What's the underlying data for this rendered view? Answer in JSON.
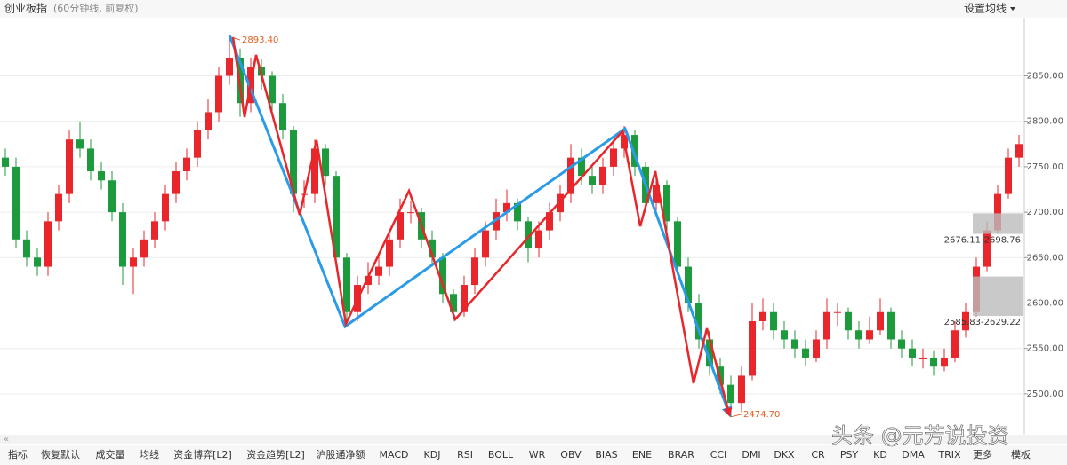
{
  "chart_data": {
    "type": "candlestick",
    "title": "创业板指",
    "subtitle": "(60分钟线, 前复权)",
    "settings": "设置均线",
    "ylim": [
      2455,
      2912
    ],
    "yticks": [
      {
        "value": 2500,
        "label": "2500.00"
      },
      {
        "value": 2550,
        "label": "2550.00"
      },
      {
        "value": 2600,
        "label": "2600.00"
      },
      {
        "value": 2650,
        "label": "2650.00"
      },
      {
        "value": 2700,
        "label": "2700.00"
      },
      {
        "value": 2750,
        "label": "2750.00"
      },
      {
        "value": 2800,
        "label": "2800.00"
      },
      {
        "value": 2850,
        "label": "2850.00"
      }
    ],
    "up_color": "#e8262b",
    "down_color": "#1c9a3c",
    "open": [
      2760,
      2750,
      2670,
      2650,
      2640,
      2690,
      2720,
      2780,
      2770,
      2745,
      2735,
      2700,
      2640,
      2650,
      2670,
      2690,
      2720,
      2745,
      2760,
      2790,
      2810,
      2850,
      2870,
      2820,
      2860,
      2850,
      2820,
      2790,
      2720,
      2720,
      2770,
      2740,
      2650,
      2590,
      2620,
      2630,
      2640,
      2670,
      2700,
      2700,
      2670,
      2650,
      2610,
      2590,
      2620,
      2650,
      2680,
      2700,
      2710,
      2690,
      2660,
      2680,
      2700,
      2720,
      2760,
      2740,
      2730,
      2750,
      2770,
      2785,
      2750,
      2710,
      2730,
      2690,
      2640,
      2600,
      2560,
      2530,
      2510,
      2490,
      2520,
      2580,
      2590,
      2570,
      2560,
      2550,
      2540,
      2560,
      2590,
      2590,
      2570,
      2560,
      2570,
      2590,
      2560,
      2550,
      2540,
      2540,
      2530,
      2540,
      2570,
      2590,
      2640,
      2680,
      2720,
      2760
    ],
    "high": [
      2770,
      2760,
      2680,
      2660,
      2700,
      2730,
      2790,
      2800,
      2780,
      2755,
      2745,
      2710,
      2660,
      2680,
      2700,
      2730,
      2755,
      2770,
      2800,
      2825,
      2860,
      2893.4,
      2880,
      2870,
      2868,
      2855,
      2830,
      2795,
      2735,
      2780,
      2775,
      2745,
      2655,
      2630,
      2645,
      2655,
      2680,
      2715,
      2712,
      2705,
      2680,
      2655,
      2615,
      2630,
      2660,
      2690,
      2715,
      2725,
      2715,
      2695,
      2690,
      2710,
      2730,
      2775,
      2770,
      2750,
      2760,
      2780,
      2795,
      2790,
      2755,
      2745,
      2735,
      2695,
      2650,
      2610,
      2570,
      2540,
      2520,
      2530,
      2600,
      2605,
      2600,
      2580,
      2570,
      2560,
      2570,
      2605,
      2600,
      2595,
      2580,
      2585,
      2605,
      2595,
      2570,
      2560,
      2550,
      2548,
      2550,
      2580,
      2600,
      2650,
      2690,
      2730,
      2770,
      2785
    ],
    "low": [
      2740,
      2660,
      2640,
      2630,
      2630,
      2680,
      2710,
      2760,
      2735,
      2725,
      2690,
      2620,
      2610,
      2640,
      2660,
      2680,
      2710,
      2735,
      2750,
      2780,
      2800,
      2840,
      2805,
      2810,
      2835,
      2805,
      2780,
      2700,
      2705,
      2710,
      2730,
      2640,
      2575,
      2580,
      2610,
      2620,
      2630,
      2660,
      2688,
      2660,
      2640,
      2600,
      2580,
      2585,
      2610,
      2640,
      2670,
      2690,
      2680,
      2645,
      2650,
      2670,
      2690,
      2710,
      2730,
      2720,
      2720,
      2740,
      2760,
      2740,
      2700,
      2700,
      2680,
      2630,
      2590,
      2550,
      2520,
      2500,
      2474.7,
      2480,
      2515,
      2570,
      2560,
      2550,
      2540,
      2530,
      2535,
      2550,
      2575,
      2560,
      2550,
      2555,
      2565,
      2550,
      2540,
      2530,
      2528,
      2520,
      2525,
      2535,
      2562,
      2585,
      2635,
      2676,
      2715,
      2750
    ],
    "close": [
      2750,
      2670,
      2650,
      2640,
      2690,
      2720,
      2780,
      2770,
      2745,
      2735,
      2700,
      2640,
      2650,
      2670,
      2690,
      2720,
      2745,
      2760,
      2790,
      2810,
      2850,
      2870,
      2820,
      2860,
      2850,
      2820,
      2790,
      2720,
      2720,
      2770,
      2740,
      2650,
      2590,
      2620,
      2630,
      2640,
      2670,
      2700,
      2700,
      2670,
      2650,
      2610,
      2590,
      2620,
      2650,
      2680,
      2700,
      2710,
      2690,
      2660,
      2680,
      2700,
      2720,
      2760,
      2740,
      2730,
      2750,
      2770,
      2785,
      2750,
      2710,
      2730,
      2690,
      2640,
      2600,
      2560,
      2530,
      2510,
      2490,
      2520,
      2580,
      2590,
      2570,
      2560,
      2550,
      2540,
      2560,
      2590,
      2590,
      2570,
      2560,
      2570,
      2590,
      2560,
      2550,
      2540,
      2540,
      2530,
      2540,
      2570,
      2590,
      2640,
      2680,
      2720,
      2760,
      2775
    ],
    "annotations": [
      {
        "value": 2893.4,
        "label": "2893.40"
      },
      {
        "value": 2474.7,
        "label": "2474.70"
      }
    ],
    "gaps": [
      {
        "low": 2676.11,
        "high": 2698.76,
        "label": "2676.11-2698.76"
      },
      {
        "low": 2585.83,
        "high": 2629.22,
        "label": "2585.83-2629.22"
      }
    ],
    "tabs": [
      "指标",
      "恢复默认",
      "成交量",
      "均线",
      "资金博弈[L2]",
      "资金趋势[L2]",
      "沪股通净额",
      "MACD",
      "KDJ",
      "RSI",
      "BOLL",
      "WR",
      "OBV",
      "BIAS",
      "ENE",
      "BRAR",
      "CCI",
      "DMI",
      "DKX",
      "CR",
      "PSY",
      "KD",
      "DMA",
      "TRIX",
      "更多",
      "模板"
    ],
    "watermark": "头条 @元芳说投资"
  }
}
